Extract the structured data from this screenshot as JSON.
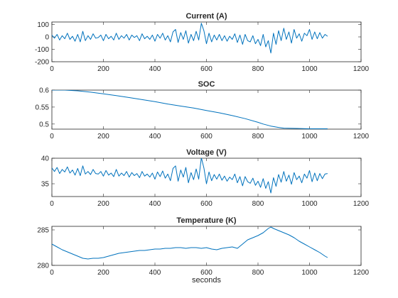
{
  "figure": {
    "line_color": "#0072BD",
    "axes_color": "#262626",
    "background": "#ffffff"
  },
  "chart_data": [
    {
      "type": "line",
      "title": "Current (A)",
      "xlabel": "",
      "ylabel": "",
      "xlim": [
        0,
        1200
      ],
      "ylim": [
        -200,
        120
      ],
      "xticks": [
        0,
        200,
        400,
        600,
        800,
        1000,
        1200
      ],
      "yticks": [
        100,
        0,
        -100,
        -200
      ],
      "grid": false,
      "series": [
        {
          "x": [
            0,
            10,
            20,
            30,
            40,
            50,
            60,
            70,
            80,
            90,
            100,
            110,
            120,
            130,
            140,
            150,
            160,
            170,
            180,
            190,
            200,
            210,
            220,
            230,
            240,
            250,
            260,
            270,
            280,
            290,
            300,
            310,
            320,
            330,
            340,
            350,
            360,
            370,
            380,
            390,
            400,
            410,
            420,
            430,
            440,
            450,
            460,
            470,
            480,
            490,
            500,
            510,
            520,
            530,
            540,
            550,
            560,
            570,
            580,
            590,
            600,
            610,
            620,
            630,
            640,
            650,
            660,
            670,
            680,
            690,
            700,
            710,
            720,
            730,
            740,
            750,
            760,
            770,
            780,
            790,
            800,
            810,
            820,
            830,
            840,
            850,
            860,
            870,
            880,
            890,
            900,
            910,
            920,
            930,
            940,
            950,
            960,
            970,
            980,
            990,
            1000,
            1010,
            1020,
            1030,
            1040,
            1050,
            1060,
            1070
          ],
          "y": [
            15,
            -10,
            20,
            -25,
            10,
            -15,
            30,
            -20,
            5,
            -35,
            20,
            -40,
            45,
            -30,
            10,
            -20,
            25,
            -10,
            -5,
            15,
            -30,
            20,
            -15,
            5,
            -25,
            30,
            -20,
            10,
            -10,
            20,
            -25,
            15,
            -5,
            10,
            -30,
            25,
            -15,
            5,
            -20,
            15,
            -35,
            20,
            -10,
            30,
            -25,
            10,
            -40,
            40,
            60,
            -45,
            35,
            -20,
            50,
            -50,
            20,
            -30,
            45,
            -25,
            110,
            50,
            -55,
            30,
            -40,
            15,
            -25,
            20,
            -30,
            10,
            -35,
            5,
            -20,
            25,
            -45,
            15,
            -60,
            20,
            -30,
            -40,
            10,
            -55,
            -20,
            -70,
            20,
            -80,
            -30,
            -130,
            30,
            -60,
            50,
            -30,
            70,
            -20,
            40,
            -50,
            60,
            -10,
            25,
            -35,
            30,
            10,
            60,
            -20,
            40,
            -15,
            35,
            -10,
            20,
            5
          ]
        }
      ]
    },
    {
      "type": "line",
      "title": "SOC",
      "xlabel": "",
      "ylabel": "",
      "xlim": [
        0,
        1200
      ],
      "ylim": [
        0.485,
        0.6
      ],
      "xticks": [
        0,
        200,
        400,
        600,
        800,
        1000,
        1200
      ],
      "yticks": [
        0.6,
        0.55,
        0.5
      ],
      "grid": false,
      "series": [
        {
          "x": [
            0,
            50,
            100,
            150,
            200,
            250,
            300,
            350,
            400,
            450,
            500,
            550,
            600,
            650,
            700,
            750,
            800,
            820,
            850,
            880,
            900,
            950,
            1000,
            1050,
            1070
          ],
          "y": [
            0.6,
            0.6,
            0.598,
            0.594,
            0.589,
            0.584,
            0.578,
            0.572,
            0.566,
            0.559,
            0.553,
            0.547,
            0.54,
            0.533,
            0.525,
            0.516,
            0.505,
            0.5,
            0.494,
            0.49,
            0.488,
            0.487,
            0.486,
            0.486,
            0.486
          ]
        }
      ]
    },
    {
      "type": "line",
      "title": "Voltage (V)",
      "xlabel": "",
      "ylabel": "",
      "xlim": [
        0,
        1200
      ],
      "ylim": [
        32.5,
        40
      ],
      "xticks": [
        0,
        200,
        400,
        600,
        800,
        1000,
        1200
      ],
      "yticks": [
        40,
        35
      ],
      "grid": false,
      "series": [
        {
          "x": [
            0,
            10,
            20,
            30,
            40,
            50,
            60,
            70,
            80,
            90,
            100,
            110,
            120,
            130,
            140,
            150,
            160,
            170,
            180,
            190,
            200,
            210,
            220,
            230,
            240,
            250,
            260,
            270,
            280,
            290,
            300,
            310,
            320,
            330,
            340,
            350,
            360,
            370,
            380,
            390,
            400,
            410,
            420,
            430,
            440,
            450,
            460,
            470,
            480,
            490,
            500,
            510,
            520,
            530,
            540,
            550,
            560,
            570,
            580,
            590,
            600,
            610,
            620,
            630,
            640,
            650,
            660,
            670,
            680,
            690,
            700,
            710,
            720,
            730,
            740,
            750,
            760,
            770,
            780,
            790,
            800,
            810,
            820,
            830,
            840,
            850,
            860,
            870,
            880,
            890,
            900,
            910,
            920,
            930,
            940,
            950,
            960,
            970,
            980,
            990,
            1000,
            1010,
            1020,
            1030,
            1040,
            1050,
            1060,
            1070
          ],
          "y": [
            38.1,
            37.4,
            38.2,
            37.0,
            37.8,
            37.3,
            38.3,
            37.1,
            37.7,
            36.7,
            38.0,
            36.6,
            38.5,
            36.9,
            37.4,
            36.8,
            37.8,
            37.0,
            36.9,
            37.4,
            36.5,
            37.6,
            36.7,
            37.1,
            36.4,
            37.8,
            36.5,
            37.1,
            36.6,
            37.4,
            36.3,
            37.2,
            36.6,
            37.0,
            36.2,
            37.4,
            36.5,
            36.9,
            36.3,
            37.1,
            35.9,
            37.3,
            36.4,
            37.5,
            36.1,
            36.9,
            35.6,
            38.0,
            38.5,
            35.5,
            37.7,
            36.3,
            38.2,
            35.2,
            37.2,
            35.8,
            37.9,
            35.9,
            40.1,
            38.1,
            35.0,
            37.3,
            35.6,
            36.8,
            35.9,
            36.9,
            35.7,
            36.5,
            35.5,
            36.3,
            35.8,
            36.9,
            35.2,
            36.4,
            34.6,
            36.4,
            35.4,
            35.1,
            36.1,
            34.7,
            35.5,
            34.3,
            36.0,
            34.1,
            35.4,
            33.2,
            36.2,
            34.5,
            36.8,
            35.3,
            37.4,
            35.5,
            36.7,
            34.9,
            37.2,
            35.8,
            36.5,
            35.2,
            36.9,
            36.1,
            37.6,
            35.4,
            37.1,
            35.6,
            37.0,
            36.0,
            36.9,
            37.0
          ]
        }
      ]
    },
    {
      "type": "line",
      "title": "Temperature (K)",
      "xlabel": "seconds",
      "ylabel": "",
      "xlim": [
        0,
        1200
      ],
      "ylim": [
        280,
        285.5
      ],
      "xticks": [
        0,
        200,
        400,
        600,
        800,
        1000,
        1200
      ],
      "yticks": [
        285,
        280
      ],
      "grid": false,
      "series": [
        {
          "x": [
            0,
            20,
            40,
            60,
            80,
            100,
            120,
            140,
            160,
            180,
            200,
            220,
            240,
            260,
            280,
            300,
            320,
            340,
            360,
            380,
            400,
            420,
            440,
            460,
            480,
            500,
            520,
            540,
            560,
            580,
            600,
            620,
            640,
            660,
            680,
            700,
            720,
            740,
            760,
            780,
            800,
            820,
            840,
            850,
            860,
            880,
            900,
            920,
            940,
            960,
            980,
            1000,
            1020,
            1040,
            1060,
            1070
          ],
          "y": [
            283.0,
            282.6,
            282.2,
            281.9,
            281.6,
            281.3,
            281.0,
            280.9,
            281.0,
            281.0,
            281.1,
            281.3,
            281.5,
            281.7,
            281.8,
            281.9,
            282.0,
            282.1,
            282.1,
            282.2,
            282.3,
            282.3,
            282.4,
            282.4,
            282.5,
            282.5,
            282.4,
            282.5,
            282.5,
            282.4,
            282.5,
            282.3,
            282.2,
            282.4,
            282.5,
            282.6,
            282.4,
            283.0,
            283.6,
            283.9,
            284.2,
            284.6,
            285.2,
            285.4,
            285.2,
            284.9,
            284.6,
            284.3,
            283.9,
            283.4,
            283.0,
            282.6,
            282.2,
            281.8,
            281.3,
            281.1
          ]
        }
      ]
    }
  ]
}
